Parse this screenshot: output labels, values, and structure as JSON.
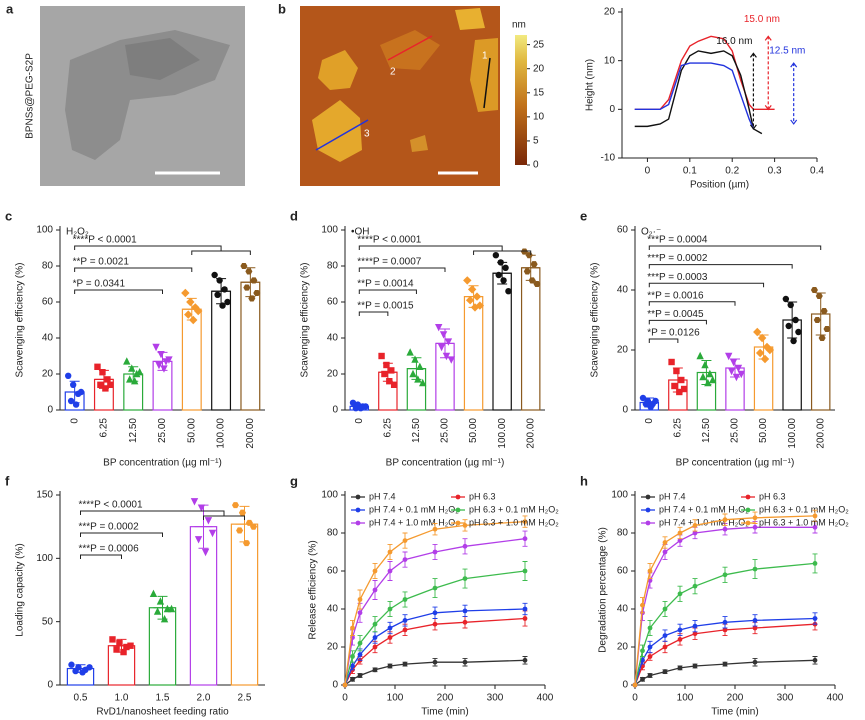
{
  "images": [
    {
      "label": "a",
      "caption": "BPNSs@PEG-S2P"
    },
    {
      "label": "b",
      "line_labels": [
        "1",
        "2",
        "3"
      ],
      "colorbar": {
        "title": "nm",
        "lim": [
          0,
          27
        ],
        "ticks": [
          0,
          5,
          10,
          15,
          20,
          25
        ]
      }
    }
  ],
  "chart_data": [
    {
      "type": "line",
      "x_label": "Position (µm)",
      "y_label": "Height (nm)",
      "x": [
        -0.03,
        0,
        0.03,
        0.05,
        0.08,
        0.1,
        0.12,
        0.15,
        0.18,
        0.2,
        0.22,
        0.24,
        0.25,
        0.27,
        0.3
      ],
      "xlim": [
        -0.06,
        0.4
      ],
      "xticks": [
        0,
        0.1,
        0.2,
        0.3,
        0.4
      ],
      "ylim": [
        -10,
        20
      ],
      "yticks": [
        -10,
        0,
        10,
        20
      ],
      "series": [
        {
          "color": "#e8232a",
          "values": [
            0,
            0,
            0,
            2,
            10,
            13,
            14,
            15,
            14.5,
            12,
            6,
            1,
            0,
            0,
            0
          ]
        },
        {
          "color": "#111111",
          "values": [
            -3.5,
            -3.5,
            -3,
            -2,
            8,
            11,
            12,
            11.5,
            12,
            11,
            7,
            0,
            -4,
            -5,
            null
          ]
        },
        {
          "color": "#2233dd",
          "values": [
            0,
            0,
            0,
            1,
            9,
            9.5,
            9.5,
            9.5,
            9,
            8,
            3,
            -2,
            -4,
            null,
            null
          ]
        }
      ],
      "annotations": [
        {
          "text": "16.0 nm",
          "color": "#111111"
        },
        {
          "text": "15.0 nm",
          "color": "#e8232a"
        },
        {
          "text": "12.5 nm",
          "color": "#2233dd"
        }
      ]
    },
    {
      "type": "bar",
      "panel": "c",
      "label": "H₂O₂",
      "x_label": "BP concentration (µg ml⁻¹)",
      "y_label": "Scavenging efficiency (%)",
      "categories": [
        "0",
        "6.25",
        "12.50",
        "25.00",
        "50.00",
        "100.00",
        "200.00"
      ],
      "values": [
        10,
        17,
        20,
        27,
        56,
        66,
        71
      ],
      "errors": [
        6,
        5,
        4,
        5,
        6,
        7,
        8
      ],
      "points": [
        [
          19,
          14,
          9,
          5,
          3,
          10
        ],
        [
          24,
          21,
          17,
          14,
          12,
          14
        ],
        [
          27,
          23,
          20,
          17,
          16,
          21
        ],
        [
          35,
          31,
          27,
          25,
          23,
          28
        ],
        [
          65,
          60,
          57,
          53,
          50,
          55
        ],
        [
          75,
          72,
          67,
          64,
          58,
          60
        ],
        [
          80,
          77,
          72,
          68,
          62,
          65
        ]
      ],
      "colors": [
        "#1f3ee8",
        "#e8232a",
        "#2aaa3a",
        "#b23ee8",
        "#f59a2f",
        "#111111",
        "#8a5a1e"
      ],
      "ylim": [
        0,
        100
      ],
      "yticks": [
        0,
        20,
        40,
        60,
        80,
        100
      ],
      "annotations": [
        "****P < 0.0001",
        "**P = 0.0021",
        "*P = 0.0341"
      ]
    },
    {
      "type": "bar",
      "panel": "d",
      "label": "•OH",
      "x_label": "BP concentration (µg ml⁻¹)",
      "y_label": "Scavenging efficiency (%)",
      "categories": [
        "0",
        "6.25",
        "12.50",
        "25.00",
        "50.00",
        "100.00",
        "200.00"
      ],
      "values": [
        2,
        21,
        23,
        37,
        63,
        76,
        79
      ],
      "errors": [
        1,
        5,
        6,
        8,
        6,
        6,
        7
      ],
      "points": [
        [
          4,
          3,
          2,
          1,
          1,
          2
        ],
        [
          30,
          25,
          22,
          20,
          16,
          14
        ],
        [
          32,
          28,
          24,
          20,
          17,
          15
        ],
        [
          46,
          42,
          38,
          35,
          30,
          28
        ],
        [
          72,
          67,
          63,
          61,
          57,
          58
        ],
        [
          86,
          82,
          79,
          75,
          72,
          66
        ],
        [
          88,
          86,
          81,
          77,
          72,
          70
        ]
      ],
      "colors": [
        "#1f3ee8",
        "#e8232a",
        "#2aaa3a",
        "#b23ee8",
        "#f59a2f",
        "#111111",
        "#8a5a1e"
      ],
      "ylim": [
        0,
        100
      ],
      "yticks": [
        0,
        20,
        40,
        60,
        80,
        100
      ],
      "annotations": [
        "****P < 0.0001",
        "****P = 0.0007",
        "**P = 0.0014",
        "**P = 0.0015"
      ]
    },
    {
      "type": "bar",
      "panel": "e",
      "label": "O₂·⁻",
      "x_label": "BP concentration (µg ml⁻¹)",
      "y_label": "Scavenging efficiency (%)",
      "categories": [
        "0",
        "6.25",
        "12.50",
        "25.00",
        "50.00",
        "100.00",
        "200.00"
      ],
      "values": [
        2.5,
        10,
        12.5,
        14,
        21,
        30,
        32
      ],
      "errors": [
        1.5,
        4,
        4,
        3,
        4,
        6,
        7
      ],
      "points": [
        [
          4,
          3,
          2,
          2,
          1,
          3
        ],
        [
          16,
          13,
          10,
          8,
          6,
          7
        ],
        [
          18,
          15,
          12,
          11,
          9,
          10
        ],
        [
          18,
          16,
          14,
          13,
          11,
          12
        ],
        [
          26,
          24,
          21,
          19,
          17,
          20
        ],
        [
          37,
          35,
          30,
          28,
          23,
          26
        ],
        [
          40,
          38,
          33,
          30,
          24,
          27
        ]
      ],
      "colors": [
        "#1f3ee8",
        "#e8232a",
        "#2aaa3a",
        "#b23ee8",
        "#f59a2f",
        "#111111",
        "#8a5a1e"
      ],
      "ylim": [
        0,
        60
      ],
      "yticks": [
        0,
        20,
        40,
        60
      ],
      "annotations": [
        "***P = 0.0004",
        "***P = 0.0002",
        "***P = 0.0003",
        "**P = 0.0016",
        "**P = 0.0045",
        "*P = 0.0126"
      ]
    },
    {
      "type": "bar",
      "panel": "f",
      "x_label": "RvD1/nanosheet feeding ratio",
      "y_label": "Loading capacity (%)",
      "categories": [
        "0.5",
        "1.0",
        "1.5",
        "2.0",
        "2.5"
      ],
      "values": [
        13,
        31,
        61,
        125,
        127
      ],
      "errors": [
        3,
        5,
        9,
        17,
        14
      ],
      "points": [
        [
          16,
          14,
          12,
          11,
          10,
          14
        ],
        [
          36,
          33,
          30,
          28,
          26,
          31
        ],
        [
          72,
          66,
          60,
          58,
          52,
          60
        ],
        [
          145,
          140,
          130,
          115,
          105,
          120
        ],
        [
          142,
          136,
          128,
          122,
          112,
          125
        ]
      ],
      "colors": [
        "#1f3ee8",
        "#e8232a",
        "#2aaa3a",
        "#b23ee8",
        "#f59a2f"
      ],
      "ylim": [
        0,
        150
      ],
      "yticks": [
        0,
        50,
        100,
        150
      ],
      "annotations": [
        "****P < 0.0001",
        "***P = 0.0002",
        "***P = 0.0006"
      ]
    },
    {
      "type": "line",
      "panel": "g",
      "x_label": "Time (min)",
      "y_label": "Release efficiency (%)",
      "markers": true,
      "legend": "upper left",
      "x": [
        0,
        15,
        30,
        60,
        90,
        120,
        180,
        240,
        360
      ],
      "xlim": [
        0,
        400
      ],
      "xticks": [
        0,
        100,
        200,
        300,
        400
      ],
      "ylim": [
        0,
        100
      ],
      "yticks": [
        0,
        20,
        40,
        60,
        80,
        100
      ],
      "series": [
        {
          "name": "pH 7.4",
          "color": "#333333",
          "values": [
            0,
            3,
            5,
            8,
            10,
            11,
            12,
            12,
            13
          ],
          "errors": [
            0,
            1,
            1,
            1,
            1,
            1,
            2,
            2,
            2
          ]
        },
        {
          "name": "pH 6.3",
          "color": "#e8232a",
          "values": [
            0,
            8,
            13,
            20,
            25,
            29,
            32,
            33,
            35
          ],
          "errors": [
            0,
            2,
            2,
            3,
            3,
            3,
            3,
            3,
            4
          ]
        },
        {
          "name": "pH 7.4 + 0.1 mM H₂O₂",
          "color": "#1f3ee8",
          "values": [
            0,
            10,
            16,
            25,
            30,
            34,
            38,
            39,
            40
          ],
          "errors": [
            0,
            2,
            3,
            3,
            3,
            3,
            3,
            3,
            3
          ]
        },
        {
          "name": "pH 6.3 + 0.1 mM H₂O₂",
          "color": "#3dbb4d",
          "values": [
            0,
            15,
            22,
            32,
            40,
            45,
            51,
            56,
            60
          ],
          "errors": [
            0,
            3,
            4,
            4,
            4,
            4,
            5,
            5,
            5
          ]
        },
        {
          "name": "pH 7.4 + 1.0 mM H₂O₂",
          "color": "#b23ee8",
          "values": [
            0,
            25,
            38,
            50,
            60,
            66,
            70,
            73,
            77
          ],
          "errors": [
            0,
            4,
            5,
            5,
            5,
            4,
            4,
            4,
            4
          ]
        },
        {
          "name": "pH 6.3 + 1.0 mM H₂O₂",
          "color": "#f59a2f",
          "values": [
            0,
            30,
            45,
            60,
            70,
            76,
            82,
            84,
            86
          ],
          "errors": [
            0,
            4,
            5,
            4,
            4,
            4,
            3,
            3,
            3
          ]
        }
      ]
    },
    {
      "type": "line",
      "panel": "h",
      "x_label": "Time (min)",
      "y_label": "Degradation percentage (%)",
      "markers": true,
      "legend": "upper left",
      "x": [
        0,
        15,
        30,
        60,
        90,
        120,
        180,
        240,
        360
      ],
      "xlim": [
        0,
        400
      ],
      "xticks": [
        0,
        100,
        200,
        300,
        400
      ],
      "ylim": [
        0,
        100
      ],
      "yticks": [
        0,
        20,
        40,
        60,
        80,
        100
      ],
      "series": [
        {
          "name": "pH 7.4",
          "color": "#333333",
          "values": [
            0,
            3,
            5,
            7,
            9,
            10,
            11,
            12,
            13
          ],
          "errors": [
            0,
            1,
            1,
            1,
            1,
            1,
            1,
            2,
            2
          ]
        },
        {
          "name": "pH 6.3",
          "color": "#e8232a",
          "values": [
            0,
            10,
            15,
            20,
            24,
            27,
            29,
            30,
            32
          ],
          "errors": [
            0,
            2,
            2,
            3,
            3,
            3,
            3,
            3,
            3
          ]
        },
        {
          "name": "pH 7.4 + 0.1 mM H₂O₂",
          "color": "#1f3ee8",
          "values": [
            0,
            13,
            20,
            26,
            29,
            31,
            33,
            34,
            35
          ],
          "errors": [
            0,
            2,
            3,
            3,
            3,
            3,
            3,
            3,
            3
          ]
        },
        {
          "name": "pH 6.3 + 0.1 mM H₂O₂",
          "color": "#3dbb4d",
          "values": [
            0,
            18,
            30,
            40,
            48,
            52,
            58,
            61,
            64
          ],
          "errors": [
            0,
            3,
            4,
            4,
            4,
            4,
            4,
            5,
            5
          ]
        },
        {
          "name": "pH 7.4 + 1.0 mM H₂O₂",
          "color": "#b23ee8",
          "values": [
            0,
            38,
            55,
            70,
            76,
            80,
            82,
            83,
            83
          ],
          "errors": [
            0,
            4,
            4,
            4,
            3,
            3,
            3,
            3,
            3
          ]
        },
        {
          "name": "pH 6.3 + 1.0 mM H₂O₂",
          "color": "#f59a2f",
          "values": [
            0,
            42,
            60,
            75,
            80,
            84,
            87,
            88,
            89
          ],
          "errors": [
            0,
            4,
            4,
            3,
            3,
            3,
            3,
            3,
            3
          ]
        }
      ]
    }
  ]
}
